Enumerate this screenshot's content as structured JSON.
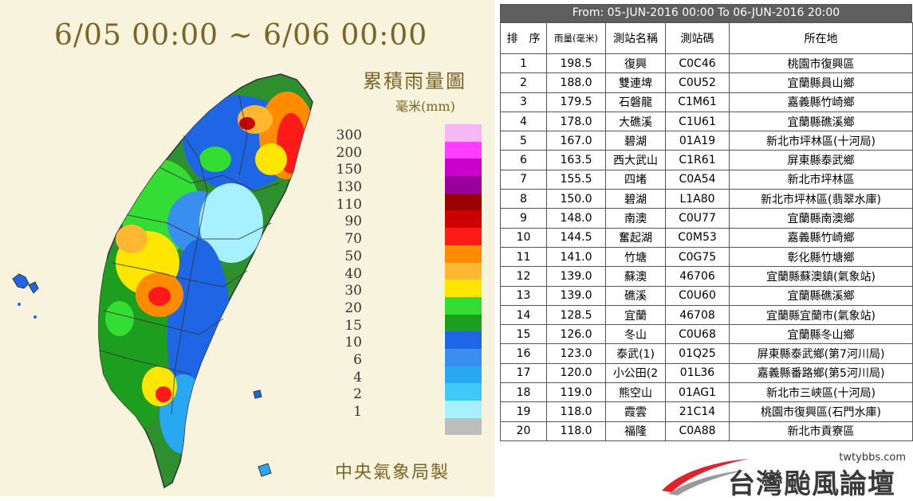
{
  "map": {
    "date_range": "6/05 00:00 ~ 6/06 00:00",
    "title": "累積雨量圖",
    "unit": "毫米(mm)",
    "credit": "中央氣象局製",
    "legend": [
      {
        "label": "300",
        "color": "#f4b8f4"
      },
      {
        "label": "200",
        "color": "#ff3cff"
      },
      {
        "label": "150",
        "color": "#cc00cc"
      },
      {
        "label": "130",
        "color": "#990099"
      },
      {
        "label": "110",
        "color": "#990000"
      },
      {
        "label": "90",
        "color": "#cc0000"
      },
      {
        "label": "70",
        "color": "#ff1a1a"
      },
      {
        "label": "50",
        "color": "#ff8c00"
      },
      {
        "label": "40",
        "color": "#ffb732"
      },
      {
        "label": "30",
        "color": "#ffe600"
      },
      {
        "label": "20",
        "color": "#33dd33"
      },
      {
        "label": "15",
        "color": "#1e9e1e"
      },
      {
        "label": "10",
        "color": "#1e66e6"
      },
      {
        "label": "6",
        "color": "#3a8ef0"
      },
      {
        "label": "4",
        "color": "#28a8f0"
      },
      {
        "label": "2",
        "color": "#40c8f8"
      },
      {
        "label": "1",
        "color": "#a6f0ff"
      },
      {
        "label": "",
        "color": "#bdbdbd"
      }
    ]
  },
  "table": {
    "caption": "From: 05-JUN-2016 00:00 To 06-JUN-2016 20:00",
    "headers": {
      "rank": "排　序",
      "amount": "雨量(毫米)",
      "station_name": "測站名稱",
      "station_code": "測站碼",
      "location": "所在地"
    },
    "rows": [
      {
        "rank": "1",
        "amount": "198.5",
        "name": "復興",
        "code": "C0C46",
        "location": "桃園市復興區"
      },
      {
        "rank": "2",
        "amount": "188.0",
        "name": "雙連埤",
        "code": "C0U52",
        "location": "宜蘭縣員山鄉"
      },
      {
        "rank": "3",
        "amount": "179.5",
        "name": "石磐龍",
        "code": "C1M61",
        "location": "嘉義縣竹崎鄉"
      },
      {
        "rank": "4",
        "amount": "178.0",
        "name": "大礁溪",
        "code": "C1U61",
        "location": "宜蘭縣礁溪鄉"
      },
      {
        "rank": "5",
        "amount": "167.0",
        "name": "碧湖",
        "code": "01A19",
        "location": "新北市坪林區(十河局)"
      },
      {
        "rank": "6",
        "amount": "163.5",
        "name": "西大武山",
        "code": "C1R61",
        "location": "屏東縣泰武鄉"
      },
      {
        "rank": "7",
        "amount": "155.5",
        "name": "四堵",
        "code": "C0A54",
        "location": "新北市坪林區"
      },
      {
        "rank": "8",
        "amount": "150.0",
        "name": "碧湖",
        "code": "L1A80",
        "location": "新北市坪林區(翡翠水庫)"
      },
      {
        "rank": "9",
        "amount": "148.0",
        "name": "南澳",
        "code": "C0U77",
        "location": "宜蘭縣南澳鄉"
      },
      {
        "rank": "10",
        "amount": "144.5",
        "name": "奮起湖",
        "code": "C0M53",
        "location": "嘉義縣竹崎鄉"
      },
      {
        "rank": "11",
        "amount": "141.0",
        "name": "竹塘",
        "code": "C0G75",
        "location": "彰化縣竹塘鄉"
      },
      {
        "rank": "12",
        "amount": "139.0",
        "name": "蘇澳",
        "code": "46706",
        "location": "宜蘭縣蘇澳鎮(氣象站)"
      },
      {
        "rank": "13",
        "amount": "139.0",
        "name": "礁溪",
        "code": "C0U60",
        "location": "宜蘭縣礁溪鄉"
      },
      {
        "rank": "14",
        "amount": "128.5",
        "name": "宜蘭",
        "code": "46708",
        "location": "宜蘭縣宜蘭市(氣象站)"
      },
      {
        "rank": "15",
        "amount": "126.0",
        "name": "冬山",
        "code": "C0U68",
        "location": "宜蘭縣冬山鄉"
      },
      {
        "rank": "16",
        "amount": "123.0",
        "name": "泰武(1)",
        "code": "01Q25",
        "location": "屏東縣泰武鄉(第7河川局)"
      },
      {
        "rank": "17",
        "amount": "120.0",
        "name": "小公田(2",
        "code": "01L36",
        "location": "嘉義縣番路鄉(第5河川局)"
      },
      {
        "rank": "18",
        "amount": "119.0",
        "name": "熊空山",
        "code": "01AG1",
        "location": "新北市三峽區(十河局)"
      },
      {
        "rank": "19",
        "amount": "118.0",
        "name": "霞雲",
        "code": "21C14",
        "location": "桃園市復興區(石門水庫)"
      },
      {
        "rank": "20",
        "amount": "118.0",
        "name": "福隆",
        "code": "C0A88",
        "location": "新北市貢寮區"
      }
    ]
  },
  "logo": {
    "url": "twtybbs.com",
    "name": "台灣颱風論壇"
  }
}
